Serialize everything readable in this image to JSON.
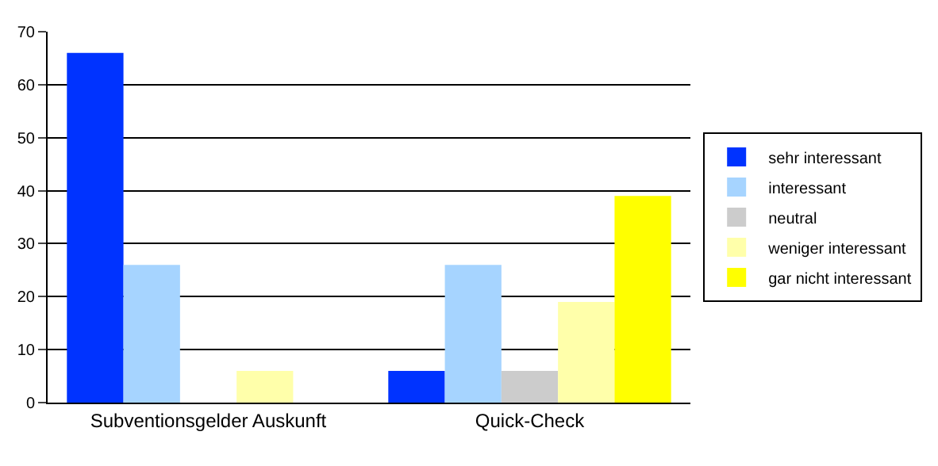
{
  "chart_data": {
    "type": "bar",
    "categories": [
      "Subventionsgelder Auskunft",
      "Quick-Check"
    ],
    "series": [
      {
        "name": "sehr interessant",
        "color": "#0033ff",
        "values": [
          66,
          6
        ]
      },
      {
        "name": "interessant",
        "color": "#a6d4ff",
        "values": [
          26,
          26
        ]
      },
      {
        "name": "neutral",
        "color": "#cccccc",
        "values": [
          0,
          6
        ]
      },
      {
        "name": "weniger interessant",
        "color": "#ffffaa",
        "values": [
          6,
          19
        ]
      },
      {
        "name": "gar nicht interessant",
        "color": "#ffff00",
        "values": [
          0,
          39
        ]
      }
    ],
    "ylim": [
      0,
      70
    ],
    "yticks": [
      0,
      10,
      20,
      30,
      40,
      50,
      60,
      70
    ],
    "grid": "y",
    "legend": "right"
  }
}
